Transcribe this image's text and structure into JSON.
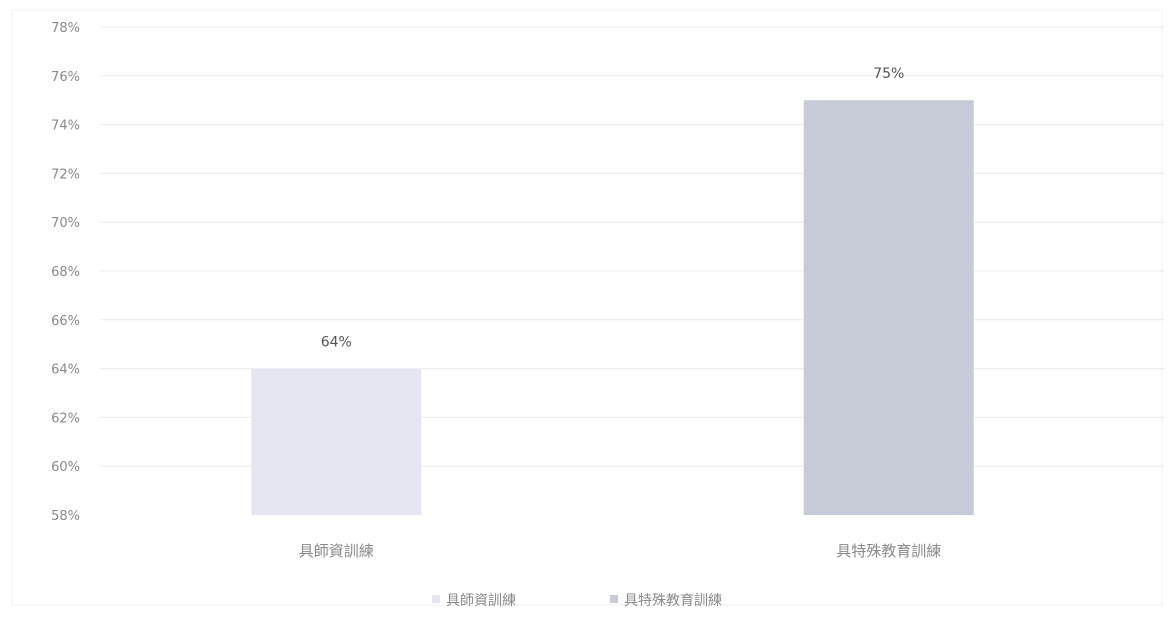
{
  "chart_data": {
    "type": "bar",
    "categories": [
      "具師資訓練",
      "具特殊教育訓練"
    ],
    "values": [
      64,
      75
    ],
    "data_labels": [
      "64%",
      "75%"
    ],
    "ylim": [
      58,
      78
    ],
    "yticks": [
      58,
      60,
      62,
      64,
      66,
      68,
      70,
      72,
      74,
      76,
      78
    ],
    "ytick_labels": [
      "58%",
      "60%",
      "62%",
      "64%",
      "66%",
      "68%",
      "70%",
      "72%",
      "74%",
      "76%",
      "78%"
    ],
    "grid": true,
    "legend_position": "bottom",
    "legend": [
      {
        "name": "具師資訓練",
        "color": "#e6e6f2"
      },
      {
        "name": "具特殊教育訓練",
        "color": "#c7cbd8"
      }
    ],
    "colors": [
      "#e6e6f2",
      "#c7cbd8"
    ],
    "title": "",
    "xlabel": "",
    "ylabel": ""
  }
}
